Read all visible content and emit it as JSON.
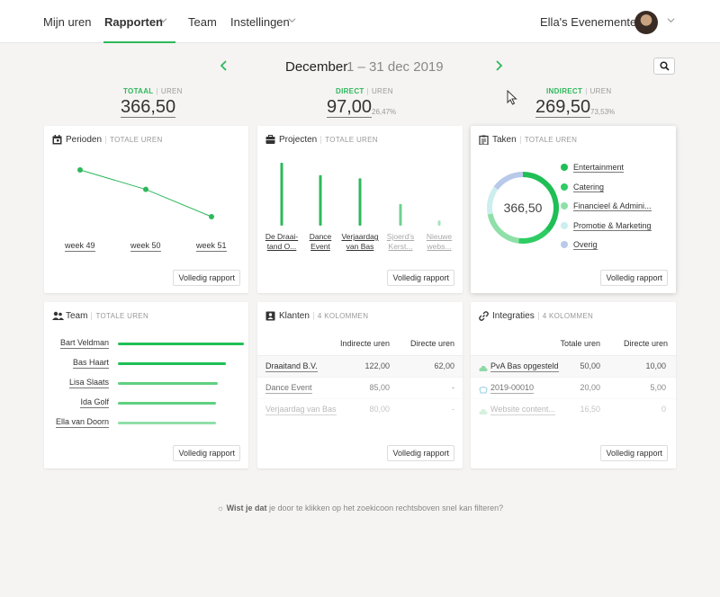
{
  "nav": {
    "items": [
      "Mijn uren",
      "Rapporten",
      "Team",
      "Instellingen"
    ],
    "account": "Ella's Evenemente..."
  },
  "period": {
    "month": "December",
    "range": "1 – 31 dec 2019"
  },
  "stats": {
    "total": {
      "key": "TOTAAL",
      "unit": "UREN",
      "value": "366,50"
    },
    "direct": {
      "key": "DIRECT",
      "unit": "UREN",
      "value": "97,00",
      "pct": "26,47%"
    },
    "indirect": {
      "key": "INDIRECT",
      "unit": "UREN",
      "value": "269,50",
      "pct": "73,53%"
    }
  },
  "report_button": "Volledig rapport",
  "cards": {
    "perioden": {
      "title": "Perioden",
      "sub": "TOTALE UREN"
    },
    "projecten": {
      "title": "Projecten",
      "sub": "TOTALE UREN"
    },
    "taken": {
      "title": "Taken",
      "sub": "TOTALE UREN"
    },
    "team": {
      "title": "Team",
      "sub": "TOTALE UREN"
    },
    "klanten": {
      "title": "Klanten",
      "sub": "4 KOLOMMEN"
    },
    "integraties": {
      "title": "Integraties",
      "sub": "4 KOLOMMEN"
    }
  },
  "chart_data": [
    {
      "type": "line",
      "categories": [
        "week 49",
        "week 50",
        "week 51"
      ],
      "values": [
        150,
        100,
        30
      ],
      "ylim": [
        0,
        180
      ]
    },
    {
      "type": "bar",
      "categories": [
        "De Draaitand O...",
        "Dance Event",
        "Verjaardag van Bas",
        "Sjoerd's Kerst...",
        "Nieuwe webs..."
      ],
      "labels": [
        [
          "De Draai-",
          "tand O..."
        ],
        [
          "Dance",
          "Event"
        ],
        [
          "Verjaardag",
          "van Bas"
        ],
        [
          "Sjoerd's",
          "Kerst..."
        ],
        [
          "Nieuwe",
          "webs..."
        ]
      ],
      "values": [
        122,
        98,
        92,
        42,
        10
      ],
      "ylim": [
        0,
        122
      ]
    },
    {
      "type": "pie",
      "center_label": "366,50",
      "categories": [
        "Entertainment",
        "Catering",
        "Financieel & Admini...",
        "Promotie & Marketing",
        "Overig"
      ],
      "values": [
        37,
        15,
        20,
        13,
        15
      ],
      "colors": [
        "#1fbf56",
        "#2ecc63",
        "#8fe0a8",
        "#cdeeef",
        "#b8c9ea"
      ]
    },
    {
      "type": "bar",
      "orientation": "horizontal",
      "categories": [
        "Bart Veldman",
        "Bas Haart",
        "Lisa Slaats",
        "Ida Golf",
        "Ella van Doorn"
      ],
      "values": [
        100,
        86,
        79,
        78,
        78
      ],
      "colors": [
        "#1fbf56",
        "#1fbf56",
        "#5fd080",
        "#5fd080",
        "#8fe0a8"
      ]
    }
  ],
  "klanten": {
    "headers": [
      "Indirecte uren",
      "Directe uren"
    ],
    "rows": [
      {
        "name": "Draaitand B.V.",
        "a": "122,00",
        "b": "62,00"
      },
      {
        "name": "Dance Event",
        "a": "85,00",
        "b": "-"
      },
      {
        "name": "Verjaardag van Bas",
        "a": "80,00",
        "b": "-"
      }
    ]
  },
  "integraties": {
    "headers": [
      "Totale uren",
      "Directe uren"
    ],
    "rows": [
      {
        "name": "PvA Bas opgesteld",
        "a": "50,00",
        "b": "10,00",
        "icon": "cloud-icon"
      },
      {
        "name": "2019-00010",
        "a": "20,00",
        "b": "5,00",
        "icon": "link-icon"
      },
      {
        "name": "Website content...",
        "a": "16,50",
        "b": "0",
        "icon": "cloud-icon"
      }
    ]
  },
  "hint": {
    "bold": "Wist je dat",
    "text": " je door te klikken op het zoekicoon rechtsboven snel kan filteren?"
  }
}
